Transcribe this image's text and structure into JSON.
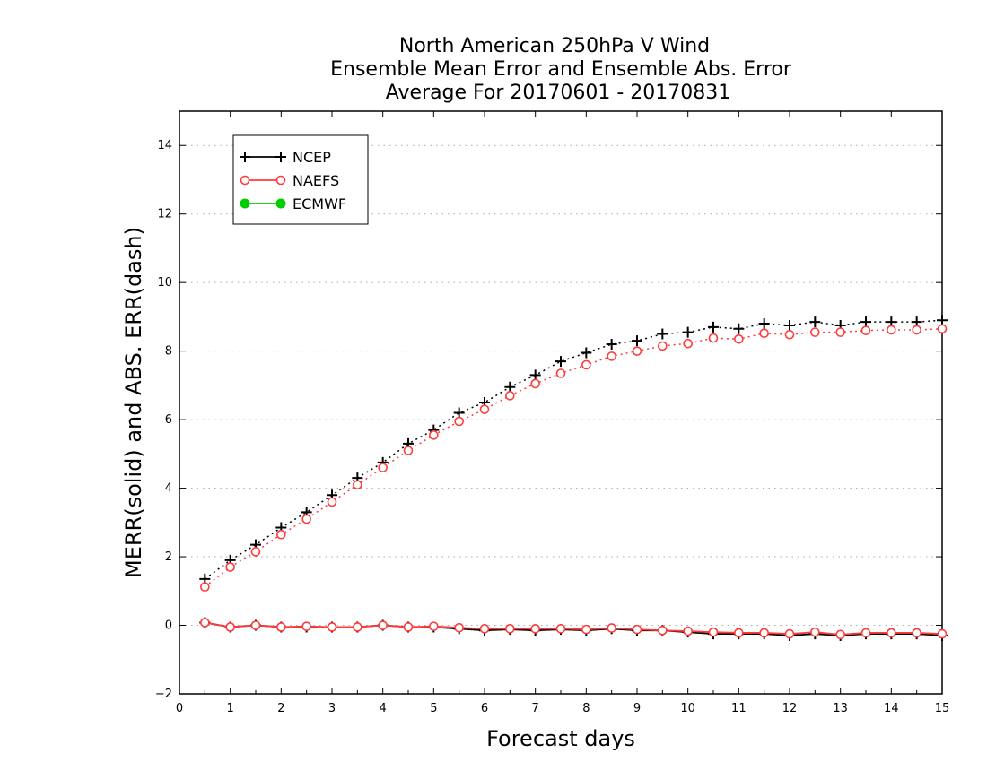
{
  "chart_data": {
    "type": "line",
    "title_lines": [
      "North American 250hPa V Wind",
      "Ensemble Mean Error and Ensemble Abs. Error",
      "Average For 20170601 - 20170831"
    ],
    "xlabel": "Forecast days",
    "ylabel": "MERR(solid) and ABS. ERR(dash)",
    "xlim": [
      0,
      15
    ],
    "ylim": [
      -2,
      15
    ],
    "xticks": [
      0,
      1,
      2,
      3,
      4,
      5,
      6,
      7,
      8,
      9,
      10,
      11,
      12,
      13,
      14,
      15
    ],
    "yticks": [
      -2,
      0,
      2,
      4,
      6,
      8,
      10,
      12,
      14
    ],
    "grid": "horizontal dotted",
    "legend_position": "top-left",
    "x": [
      0.5,
      1,
      1.5,
      2,
      2.5,
      3,
      3.5,
      4,
      4.5,
      5,
      5.5,
      6,
      6.5,
      7,
      7.5,
      8,
      8.5,
      9,
      9.5,
      10,
      10.5,
      11,
      11.5,
      12,
      12.5,
      13,
      13.5,
      14,
      14.5,
      15
    ],
    "series": [
      {
        "name": "NCEP",
        "color": "#000000",
        "marker": "plus",
        "abs_err": [
          1.35,
          1.9,
          2.35,
          2.85,
          3.3,
          3.8,
          4.3,
          4.75,
          5.3,
          5.7,
          6.2,
          6.5,
          6.95,
          7.3,
          7.7,
          7.95,
          8.2,
          8.3,
          8.5,
          8.55,
          8.7,
          8.65,
          8.8,
          8.75,
          8.85,
          8.75,
          8.85,
          8.85,
          8.85,
          8.9
        ],
        "mean_err": [
          0.08,
          -0.05,
          0.0,
          -0.05,
          -0.05,
          -0.05,
          -0.05,
          0.0,
          -0.05,
          -0.05,
          -0.1,
          -0.15,
          -0.12,
          -0.15,
          -0.12,
          -0.15,
          -0.1,
          -0.15,
          -0.15,
          -0.2,
          -0.25,
          -0.25,
          -0.25,
          -0.3,
          -0.25,
          -0.3,
          -0.25,
          -0.25,
          -0.25,
          -0.3
        ]
      },
      {
        "name": "NAEFS",
        "color": "#ff3b3b",
        "marker": "open-circle",
        "abs_err": [
          1.12,
          1.7,
          2.15,
          2.65,
          3.1,
          3.6,
          4.1,
          4.6,
          5.1,
          5.55,
          5.95,
          6.3,
          6.7,
          7.05,
          7.35,
          7.6,
          7.85,
          8.0,
          8.15,
          8.22,
          8.38,
          8.35,
          8.52,
          8.48,
          8.55,
          8.55,
          8.6,
          8.62,
          8.62,
          8.65
        ],
        "mean_err": [
          0.08,
          -0.05,
          0.0,
          -0.05,
          -0.03,
          -0.05,
          -0.05,
          0.0,
          -0.05,
          -0.03,
          -0.07,
          -0.1,
          -0.1,
          -0.1,
          -0.1,
          -0.12,
          -0.08,
          -0.12,
          -0.15,
          -0.17,
          -0.2,
          -0.22,
          -0.22,
          -0.25,
          -0.2,
          -0.27,
          -0.22,
          -0.22,
          -0.22,
          -0.25
        ]
      },
      {
        "name": "ECMWF",
        "color": "#00cc00",
        "marker": "filled-circle",
        "abs_err": [],
        "mean_err": []
      }
    ]
  }
}
